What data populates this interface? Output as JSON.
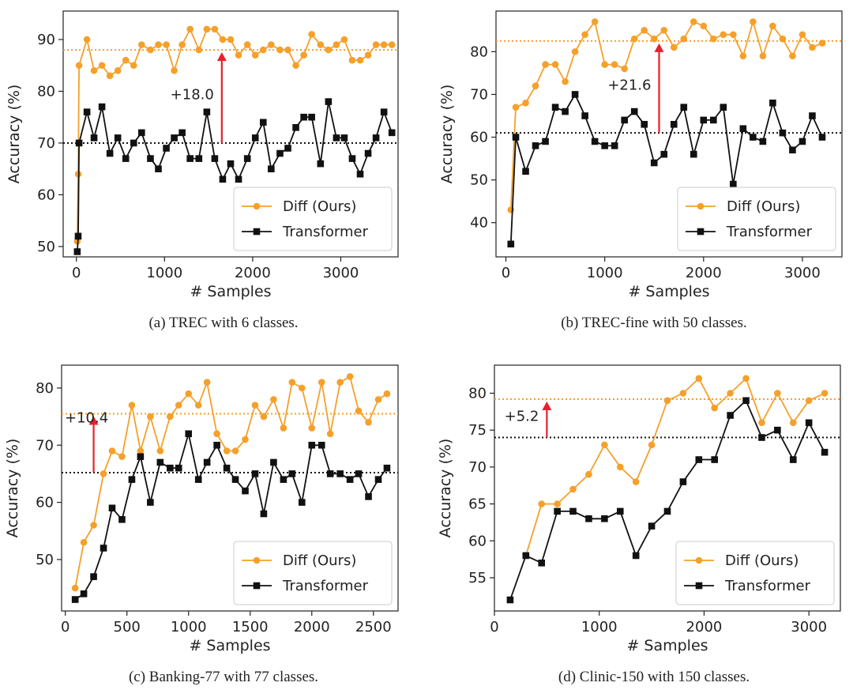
{
  "colors": {
    "diff": "#f5a02a",
    "transformer": "#111111",
    "arrow": "#e8202a"
  },
  "chart_data": [
    {
      "type": "line",
      "caption": "(a) TREC with 6 classes.",
      "xlabel": "# Samples",
      "ylabel": "Accuracy (%)",
      "xlim": [
        -150,
        3650
      ],
      "ylim": [
        48,
        95.5
      ],
      "xticks": [
        0,
        1000,
        2000,
        3000
      ],
      "yticks": [
        50,
        60,
        70,
        80,
        90
      ],
      "legend": [
        "Diff (Ours)",
        "Transformer"
      ],
      "legend_loc": "lower-right",
      "hlines": {
        "diff": 88,
        "transformer": 70
      },
      "annotation": {
        "text": "+18.0",
        "x": 1650,
        "from": 70,
        "to": 88
      },
      "series": [
        {
          "name": "Diff (Ours)",
          "x": [
            10,
            20,
            30,
            120,
            200,
            290,
            380,
            470,
            560,
            650,
            740,
            840,
            930,
            1020,
            1110,
            1200,
            1290,
            1390,
            1480,
            1570,
            1660,
            1750,
            1840,
            1940,
            2030,
            2120,
            2210,
            2310,
            2400,
            2490,
            2580,
            2670,
            2770,
            2860,
            2950,
            3040,
            3130,
            3220,
            3310,
            3400,
            3490,
            3580
          ],
          "y": [
            51,
            64,
            85,
            90,
            84,
            85,
            83,
            84,
            86,
            85,
            89,
            88,
            89,
            89,
            84,
            89,
            92,
            88,
            92,
            92,
            90,
            90,
            87,
            89,
            87,
            88,
            89,
            88,
            88,
            85,
            87,
            91,
            89,
            88,
            89,
            90,
            86,
            86,
            87,
            89,
            89,
            89
          ]
        },
        {
          "name": "Transformer",
          "x": [
            10,
            20,
            30,
            120,
            200,
            290,
            380,
            470,
            560,
            650,
            740,
            840,
            930,
            1020,
            1110,
            1200,
            1290,
            1390,
            1480,
            1570,
            1660,
            1750,
            1840,
            1940,
            2030,
            2120,
            2210,
            2310,
            2400,
            2490,
            2580,
            2670,
            2770,
            2860,
            2950,
            3040,
            3130,
            3220,
            3310,
            3400,
            3490,
            3580
          ],
          "y": [
            49,
            52,
            70,
            76,
            71,
            77,
            68,
            71,
            67,
            70,
            72,
            67,
            65,
            69,
            71,
            72,
            67,
            67,
            76,
            67,
            63,
            66,
            63,
            67,
            71,
            74,
            65,
            68,
            69,
            73,
            75,
            75,
            66,
            78,
            71,
            71,
            67,
            64,
            68,
            71,
            76,
            72
          ]
        }
      ]
    },
    {
      "type": "line",
      "caption": "(b) TREC-fine with 50 classes.",
      "xlabel": "# Samples",
      "ylabel": "Accuracy (%)",
      "xlim": [
        -100,
        3400
      ],
      "ylim": [
        32,
        89.5
      ],
      "xticks": [
        0,
        1000,
        2000,
        3000
      ],
      "yticks": [
        40,
        50,
        60,
        70,
        80
      ],
      "legend": [
        "Diff (Ours)",
        "Transformer"
      ],
      "legend_loc": "lower-right",
      "hlines": {
        "diff": 82.5,
        "transformer": 61
      },
      "annotation": {
        "text": "+21.6",
        "x": 1550,
        "from": 61,
        "to": 82.5
      },
      "series": [
        {
          "name": "Diff (Ours)",
          "x": [
            50,
            100,
            200,
            300,
            400,
            500,
            600,
            700,
            800,
            900,
            1000,
            1100,
            1200,
            1300,
            1400,
            1500,
            1600,
            1700,
            1800,
            1900,
            2000,
            2100,
            2200,
            2300,
            2400,
            2500,
            2600,
            2700,
            2800,
            2900,
            3000,
            3100,
            3200
          ],
          "y": [
            43,
            67,
            68,
            72,
            77,
            77,
            73,
            80,
            84,
            87,
            77,
            77,
            76,
            83,
            85,
            83,
            85,
            81,
            83,
            87,
            86,
            83,
            84,
            84,
            79,
            87,
            79,
            86,
            83,
            79,
            84,
            81,
            82
          ]
        },
        {
          "name": "Transformer",
          "x": [
            50,
            100,
            200,
            300,
            400,
            500,
            600,
            700,
            800,
            900,
            1000,
            1100,
            1200,
            1300,
            1400,
            1500,
            1600,
            1700,
            1800,
            1900,
            2000,
            2100,
            2200,
            2300,
            2400,
            2500,
            2600,
            2700,
            2800,
            2900,
            3000,
            3100,
            3200
          ],
          "y": [
            35,
            60,
            52,
            58,
            59,
            67,
            66,
            70,
            65,
            59,
            58,
            58,
            64,
            66,
            63,
            54,
            56,
            63,
            67,
            56,
            64,
            64,
            67,
            49,
            62,
            60,
            59,
            68,
            61,
            57,
            59,
            65,
            60
          ]
        }
      ]
    },
    {
      "type": "line",
      "caption": "(c) Banking-77 with 77 classes.",
      "xlabel": "# Samples",
      "ylabel": "Accuracy (%)",
      "xlim": [
        -30,
        2700
      ],
      "ylim": [
        41,
        84
      ],
      "xticks": [
        0,
        500,
        1000,
        1500,
        2000,
        2500
      ],
      "yticks": [
        50,
        60,
        70,
        80
      ],
      "legend": [
        "Diff (Ours)",
        "Transformer"
      ],
      "legend_loc": "lower-right",
      "hlines": {
        "diff": 75.5,
        "transformer": 65.2
      },
      "annotation": {
        "text": "+10.4",
        "x": 230,
        "from": 65.2,
        "to": 75.5
      },
      "series": [
        {
          "name": "Diff (Ours)",
          "x": [
            80,
            150,
            230,
            310,
            380,
            460,
            540,
            610,
            690,
            770,
            850,
            920,
            1000,
            1080,
            1150,
            1230,
            1310,
            1380,
            1460,
            1540,
            1610,
            1690,
            1770,
            1840,
            1920,
            2000,
            2080,
            2150,
            2230,
            2310,
            2380,
            2460,
            2540,
            2610
          ],
          "y": [
            45,
            53,
            56,
            65,
            69,
            68,
            77,
            69,
            75,
            69,
            75,
            77,
            79,
            77,
            81,
            72,
            69,
            69,
            71,
            77,
            75,
            78,
            73,
            81,
            80,
            73,
            81,
            72,
            81,
            82,
            76,
            74,
            78,
            79
          ]
        },
        {
          "name": "Transformer",
          "x": [
            80,
            150,
            230,
            310,
            380,
            460,
            540,
            610,
            690,
            770,
            850,
            920,
            1000,
            1080,
            1150,
            1230,
            1310,
            1380,
            1460,
            1540,
            1610,
            1690,
            1770,
            1840,
            1920,
            2000,
            2080,
            2150,
            2230,
            2310,
            2380,
            2460,
            2540,
            2610
          ],
          "y": [
            43,
            44,
            47,
            52,
            59,
            57,
            64,
            68,
            60,
            67,
            66,
            66,
            72,
            64,
            67,
            70,
            66,
            64,
            62,
            65,
            58,
            67,
            64,
            65,
            60,
            70,
            70,
            65,
            65,
            64,
            65,
            61,
            64,
            66
          ]
        }
      ]
    },
    {
      "type": "line",
      "caption": "(d) Clinic-150 with 150 classes.",
      "xlabel": "# Samples",
      "ylabel": "Accuracy (%)",
      "xlim": [
        0,
        3300
      ],
      "ylim": [
        50.5,
        83.8
      ],
      "xticks": [
        0,
        1000,
        2000,
        3000
      ],
      "yticks": [
        55,
        60,
        65,
        70,
        75,
        80
      ],
      "legend": [
        "Diff (Ours)",
        "Transformer"
      ],
      "legend_loc": "lower-right",
      "hlines": {
        "diff": 79.2,
        "transformer": 74
      },
      "annotation": {
        "text": "+5.2",
        "x": 500,
        "from": 74,
        "to": 79.2
      },
      "series": [
        {
          "name": "Diff (Ours)",
          "x": [
            300,
            450,
            600,
            750,
            900,
            1050,
            1200,
            1350,
            1500,
            1650,
            1800,
            1950,
            2100,
            2250,
            2400,
            2550,
            2700,
            2850,
            3000,
            3150
          ],
          "y": [
            58,
            65,
            65,
            67,
            69,
            73,
            70,
            68,
            73,
            79,
            80,
            82,
            78,
            80,
            82,
            76,
            80,
            76,
            79,
            80
          ]
        },
        {
          "name": "Transformer",
          "x": [
            150,
            300,
            450,
            600,
            750,
            900,
            1050,
            1200,
            1350,
            1500,
            1650,
            1800,
            1950,
            2100,
            2250,
            2400,
            2550,
            2700,
            2850,
            3000,
            3150
          ],
          "y": [
            52,
            58,
            57,
            64,
            64,
            63,
            63,
            64,
            58,
            62,
            64,
            68,
            71,
            71,
            77,
            79,
            74,
            75,
            71,
            76,
            72
          ]
        }
      ]
    }
  ]
}
